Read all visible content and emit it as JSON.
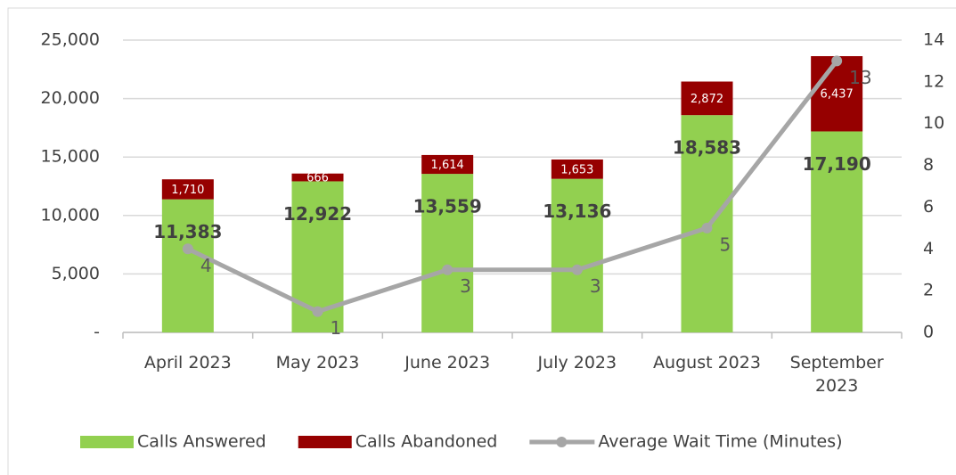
{
  "chart_data": {
    "type": "bar",
    "stacked": true,
    "categories": [
      "April 2023",
      "May 2023",
      "June 2023",
      "July 2023",
      "August 2023",
      "September 2023"
    ],
    "series": [
      {
        "name": "Calls Answered",
        "color": "#92d050",
        "values": [
          11383,
          12922,
          13559,
          13136,
          18583,
          17190
        ],
        "value_labels": [
          "11,383",
          "12,922",
          "13,559",
          "13,136",
          "18,583",
          "17,190"
        ]
      },
      {
        "name": "Calls Abandoned",
        "color": "#960000",
        "values": [
          1710,
          666,
          1614,
          1653,
          2872,
          6437
        ],
        "value_labels": [
          "1,710",
          "666",
          "1,614",
          "1,653",
          "2,872",
          "6,437"
        ]
      },
      {
        "name": "Average Wait Time (Minutes)",
        "type": "line",
        "axis": "y2",
        "color": "#a6a6a6",
        "values": [
          4,
          1,
          3,
          3,
          5,
          13
        ]
      }
    ],
    "ylim": [
      0,
      25000
    ],
    "yticks": [
      {
        "value": 0,
        "label": "-"
      },
      {
        "value": 5000,
        "label": "5,000"
      },
      {
        "value": 10000,
        "label": "10,000"
      },
      {
        "value": 15000,
        "label": "15,000"
      },
      {
        "value": 20000,
        "label": "20,000"
      },
      {
        "value": 25000,
        "label": "25,000"
      }
    ],
    "y2lim": [
      0,
      14
    ],
    "y2ticks": [
      0,
      2,
      4,
      6,
      8,
      10,
      12,
      14
    ],
    "grid": true,
    "legend": "bottom"
  }
}
